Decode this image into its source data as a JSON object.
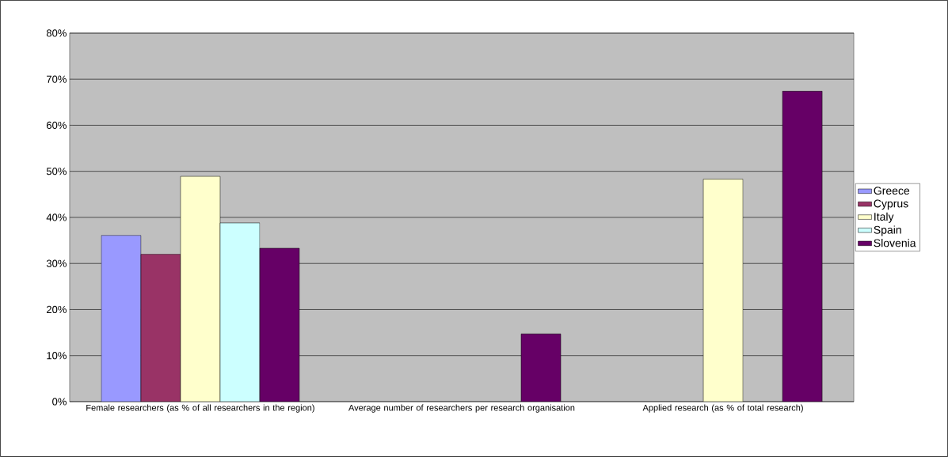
{
  "chart_data": {
    "type": "bar",
    "categories": [
      "Female researchers (as % of all researchers in the region)",
      "Average number of researchers per research organisation",
      "Applied research (as % of total research)"
    ],
    "series": [
      {
        "name": "Greece",
        "color": "#9999ff",
        "values": [
          36.1,
          null,
          null
        ]
      },
      {
        "name": "Cyprus",
        "color": "#993366",
        "values": [
          32.0,
          null,
          null
        ]
      },
      {
        "name": "Italy",
        "color": "#ffffcc",
        "values": [
          48.9,
          null,
          48.3
        ]
      },
      {
        "name": "Spain",
        "color": "#ccffff",
        "values": [
          38.8,
          null,
          null
        ]
      },
      {
        "name": "Slovenia",
        "color": "#660066",
        "values": [
          33.3,
          14.7,
          67.4
        ]
      }
    ],
    "ylim": [
      0,
      80
    ],
    "yticks": [
      {
        "value": 0,
        "label": "0%"
      },
      {
        "value": 10,
        "label": "10%"
      },
      {
        "value": 20,
        "label": "20%"
      },
      {
        "value": 30,
        "label": "30%"
      },
      {
        "value": 40,
        "label": "40%"
      },
      {
        "value": 50,
        "label": "50%"
      },
      {
        "value": 60,
        "label": "60%"
      },
      {
        "value": 70,
        "label": "70%"
      },
      {
        "value": 80,
        "label": "80%"
      }
    ],
    "grid": "y",
    "legend": "right"
  }
}
